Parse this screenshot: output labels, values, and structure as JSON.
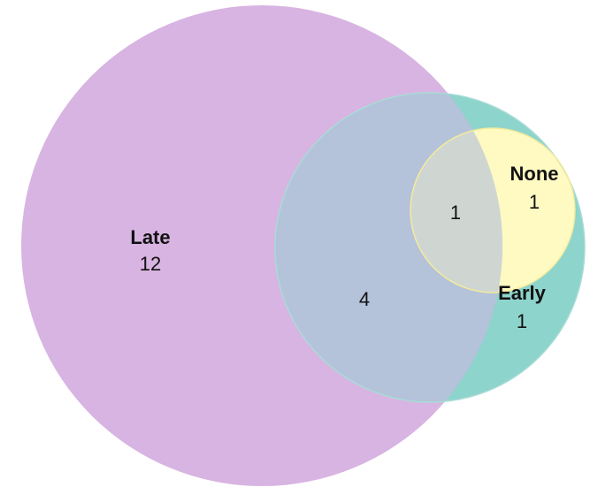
{
  "sets": [
    {
      "label": "Late",
      "count": "12"
    },
    {
      "label": "None",
      "count": "1"
    },
    {
      "label": "Early",
      "count": "1"
    }
  ],
  "overlaps": [
    {
      "count": "4"
    },
    {
      "count": "1"
    }
  ]
}
